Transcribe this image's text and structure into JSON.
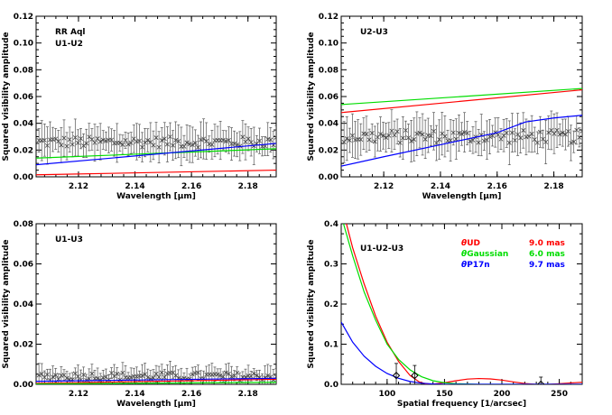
{
  "chart_data": [
    {
      "type": "line",
      "panel": "U1-U2",
      "annotations": [
        "RR Aql",
        "U1-U2"
      ],
      "xlabel": "Wavelength [μm]",
      "ylabel": "Squared visibility amplitude",
      "xlim": [
        2.105,
        2.19
      ],
      "ylim": [
        0,
        0.12
      ],
      "xticks": [
        2.12,
        2.14,
        2.16,
        2.18
      ],
      "yticks": [
        0.0,
        0.02,
        0.04,
        0.06,
        0.08,
        0.1,
        0.12
      ],
      "observed": {
        "marker": "x",
        "x_start": 2.106,
        "x_end": 2.19,
        "count": 86,
        "y_mean": 0.026,
        "y_spread": 0.004,
        "err_mean": 0.01
      },
      "series": [
        {
          "model": "UD",
          "color": "#ff0000",
          "x": [
            2.105,
            2.19
          ],
          "y": [
            0.0015,
            0.005
          ]
        },
        {
          "model": "Gaussian",
          "color": "#00dd00",
          "x": [
            2.105,
            2.19
          ],
          "y": [
            0.014,
            0.021
          ]
        },
        {
          "model": "P17n",
          "color": "#0000ff",
          "x": [
            2.105,
            2.19
          ],
          "y": [
            0.009,
            0.025
          ]
        }
      ]
    },
    {
      "type": "line",
      "panel": "U2-U3",
      "annotations": [
        "U2-U3"
      ],
      "xlabel": "Wavelength [μm]",
      "ylabel": "Squared visibility amplitude",
      "xlim": [
        2.105,
        2.19
      ],
      "ylim": [
        0,
        0.12
      ],
      "xticks": [
        2.12,
        2.14,
        2.16,
        2.18
      ],
      "yticks": [
        0.0,
        0.02,
        0.04,
        0.06,
        0.08,
        0.1,
        0.12
      ],
      "observed": {
        "marker": "x",
        "x_start": 2.106,
        "x_end": 2.19,
        "count": 86,
        "y_mean": 0.03,
        "y_spread": 0.005,
        "err_mean": 0.011
      },
      "series": [
        {
          "model": "UD",
          "color": "#ff0000",
          "x": [
            2.105,
            2.19
          ],
          "y": [
            0.048,
            0.065
          ]
        },
        {
          "model": "Gaussian",
          "color": "#00dd00",
          "x": [
            2.105,
            2.19
          ],
          "y": [
            0.054,
            0.066
          ]
        },
        {
          "model": "P17n",
          "color": "#0000ff",
          "x": [
            2.105,
            2.12,
            2.14,
            2.16,
            2.17,
            2.18,
            2.19
          ],
          "y": [
            0.008,
            0.015,
            0.024,
            0.033,
            0.041,
            0.044,
            0.046
          ]
        }
      ]
    },
    {
      "type": "line",
      "panel": "U1-U3",
      "annotations": [
        "U1-U3"
      ],
      "xlabel": "Wavelength [μm]",
      "ylabel": "Squared visibility amplitude",
      "xlim": [
        2.105,
        2.19
      ],
      "ylim": [
        0,
        0.08
      ],
      "xticks": [
        2.12,
        2.14,
        2.16,
        2.18
      ],
      "yticks": [
        0.0,
        0.02,
        0.04,
        0.06,
        0.08
      ],
      "observed": {
        "marker": "x",
        "x_start": 2.106,
        "x_end": 2.19,
        "count": 86,
        "y_mean": 0.004,
        "y_spread": 0.002,
        "err_mean": 0.004
      },
      "series": [
        {
          "model": "UD",
          "color": "#ff0000",
          "x": [
            2.105,
            2.19
          ],
          "y": [
            0.0005,
            0.0025
          ]
        },
        {
          "model": "Gaussian",
          "color": "#00dd00",
          "x": [
            2.105,
            2.19
          ],
          "y": [
            0.0002,
            0.001
          ]
        },
        {
          "model": "P17n",
          "color": "#0000ff",
          "x": [
            2.105,
            2.19
          ],
          "y": [
            0.0015,
            0.003
          ]
        }
      ]
    },
    {
      "type": "line",
      "panel": "U1-U2-U3",
      "annotations": [
        "U1-U2-U3"
      ],
      "xlabel": "Spatial frequency [1/arcsec]",
      "ylabel": "Squared visibility amplitude",
      "xlim": [
        60,
        270
      ],
      "ylim": [
        0,
        0.4
      ],
      "xticks": [
        100,
        150,
        200,
        250
      ],
      "yticks": [
        0.0,
        0.1,
        0.2,
        0.3,
        0.4
      ],
      "legend": [
        {
          "symbol": "θ",
          "label": "UD",
          "value": "9.0 mas",
          "color": "#ff0000"
        },
        {
          "symbol": "θ",
          "label": "Gaussian",
          "value": "6.0 mas",
          "color": "#00dd00"
        },
        {
          "symbol": "θ",
          "label": "P17n",
          "value": "9.7 mas",
          "color": "#0000ff"
        }
      ],
      "points": {
        "x": [
          108,
          124,
          234
        ],
        "y": [
          0.022,
          0.022,
          0.0
        ],
        "err": [
          0.03,
          0.025,
          0.018
        ]
      },
      "series": [
        {
          "model": "UD",
          "color": "#ff0000",
          "x": [
            60,
            70,
            80,
            90,
            100,
            110,
            120,
            128,
            135,
            140,
            150,
            160,
            170,
            180,
            190,
            200,
            210,
            220,
            230,
            240,
            250,
            260,
            270
          ],
          "y": [
            0.45,
            0.34,
            0.25,
            0.17,
            0.105,
            0.057,
            0.022,
            0.006,
            0.0,
            0.0005,
            0.004,
            0.009,
            0.013,
            0.0145,
            0.0135,
            0.0105,
            0.006,
            0.002,
            0.0,
            0.0,
            0.0015,
            0.0035,
            0.005
          ]
        },
        {
          "model": "Gaussian",
          "color": "#00dd00",
          "x": [
            60,
            70,
            80,
            90,
            100,
            110,
            120,
            130,
            140,
            150,
            160,
            180,
            200,
            230,
            270
          ],
          "y": [
            0.42,
            0.32,
            0.23,
            0.16,
            0.1,
            0.062,
            0.036,
            0.019,
            0.009,
            0.004,
            0.0015,
            0.0,
            0.0,
            0.0,
            0.0
          ]
        },
        {
          "model": "P17n",
          "color": "#0000ff",
          "x": [
            60,
            65,
            70,
            80,
            90,
            100,
            110,
            120,
            130,
            140,
            150,
            160,
            180,
            200,
            230,
            270
          ],
          "y": [
            0.155,
            0.13,
            0.105,
            0.07,
            0.045,
            0.027,
            0.015,
            0.007,
            0.003,
            0.001,
            0.0,
            0.0,
            0.0,
            0.0,
            0.0,
            0.0
          ]
        }
      ]
    }
  ]
}
